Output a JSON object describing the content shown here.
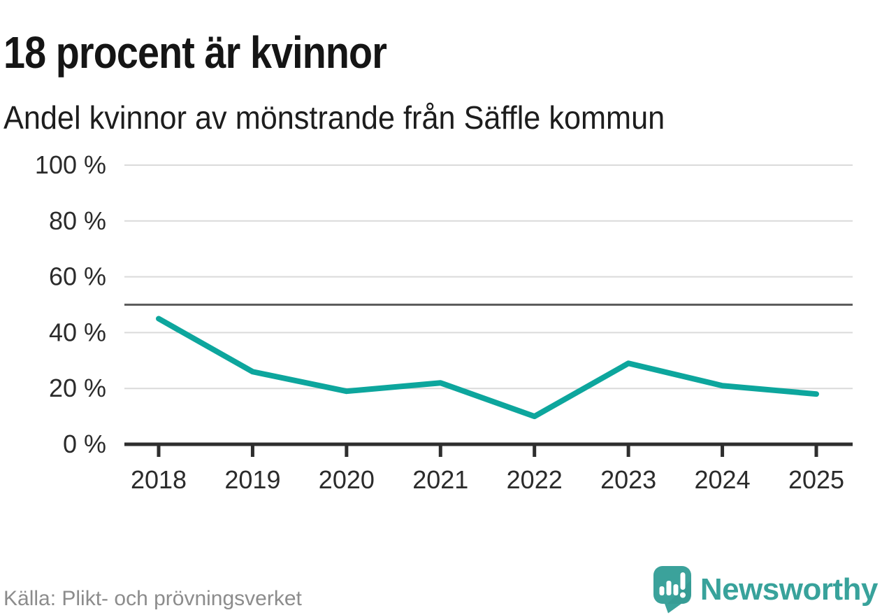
{
  "header": {
    "title": "18 procent är kvinnor",
    "subtitle": "Andel kvinnor av mönstrande från Säffle kommun"
  },
  "chart_data": {
    "type": "line",
    "title": "18 procent är kvinnor",
    "subtitle": "Andel kvinnor av mönstrande från Säffle kommun",
    "categories": [
      "2018",
      "2019",
      "2020",
      "2021",
      "2022",
      "2023",
      "2024",
      "2025"
    ],
    "series": [
      {
        "name": "Andel kvinnor av mönstrande",
        "values": [
          45,
          26,
          19,
          22,
          10,
          29,
          21,
          18
        ]
      }
    ],
    "unit": "%",
    "ylim": [
      0,
      100
    ],
    "y_ticks": [
      {
        "value": 0,
        "label": "0 %"
      },
      {
        "value": 20,
        "label": "20 %"
      },
      {
        "value": 40,
        "label": "40 %"
      },
      {
        "value": 60,
        "label": "60 %"
      },
      {
        "value": 80,
        "label": "80 %"
      },
      {
        "value": 100,
        "label": "100 %"
      }
    ],
    "reference_line": {
      "value": 50
    },
    "grid": true,
    "legend": "none",
    "line_color": "#0da69d"
  },
  "footer": {
    "source": "Källa: Plikt- och prövningsverket",
    "brand_name": "Newsworthy",
    "logo_icon": "newsworthy-speech-bubble-bar-chart-icon"
  },
  "colors": {
    "accent_line": "#0da69d",
    "brand_teal": "#38a29b",
    "reference_line": "#5c5c5c",
    "gridline": "#dadada",
    "axis": "#2e2e2e",
    "muted_text": "#8c8c8c"
  }
}
